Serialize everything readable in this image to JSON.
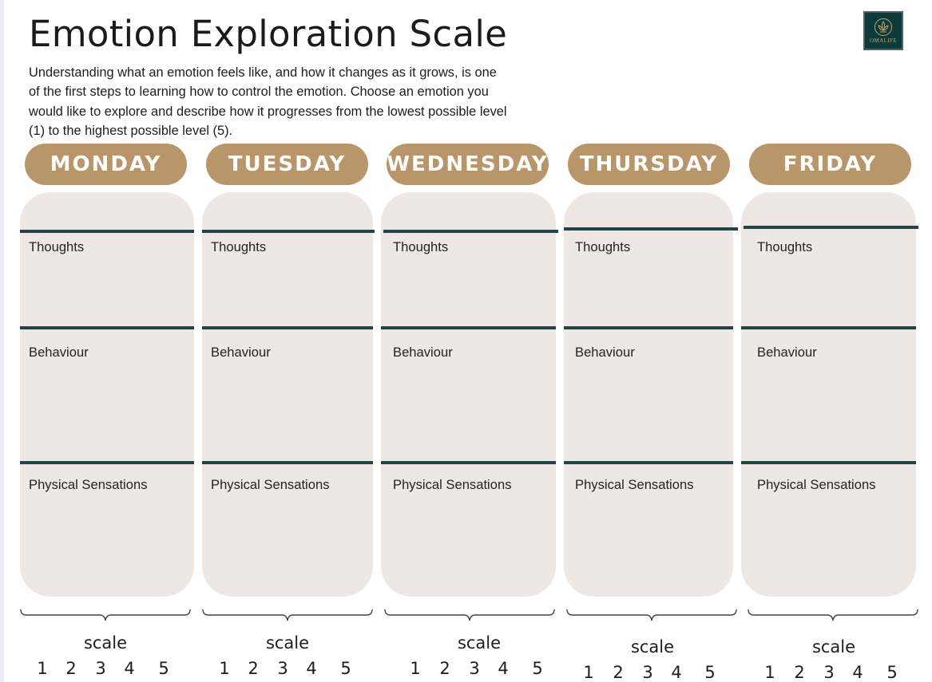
{
  "title": "Emotion Exploration Scale",
  "intro": "Understanding what an emotion feels like, and how it changes as it grows, is one of the first steps to learning how to control the emotion. Choose an emotion you would like to explore and describe how it progresses from the lowest possible level (1) to the highest possible level (5).",
  "logo": {
    "text": "OMALIFE",
    "icon": "lotus-icon",
    "bg": "#0d3a3a",
    "accent": "#c8a267"
  },
  "colors": {
    "pill": "#b8966a",
    "panel": "#efe7e4",
    "divider": "#234447"
  },
  "days": [
    {
      "name": "MONDAY"
    },
    {
      "name": "TUESDAY"
    },
    {
      "name": "WEDNESDAY"
    },
    {
      "name": "THURSDAY"
    },
    {
      "name": "FRIDAY"
    }
  ],
  "sections": [
    "Thoughts",
    "Behaviour",
    "Physical Sensations"
  ],
  "scale": {
    "label": "scale",
    "numbers": [
      "1",
      "2",
      "3",
      "4",
      "5"
    ]
  }
}
